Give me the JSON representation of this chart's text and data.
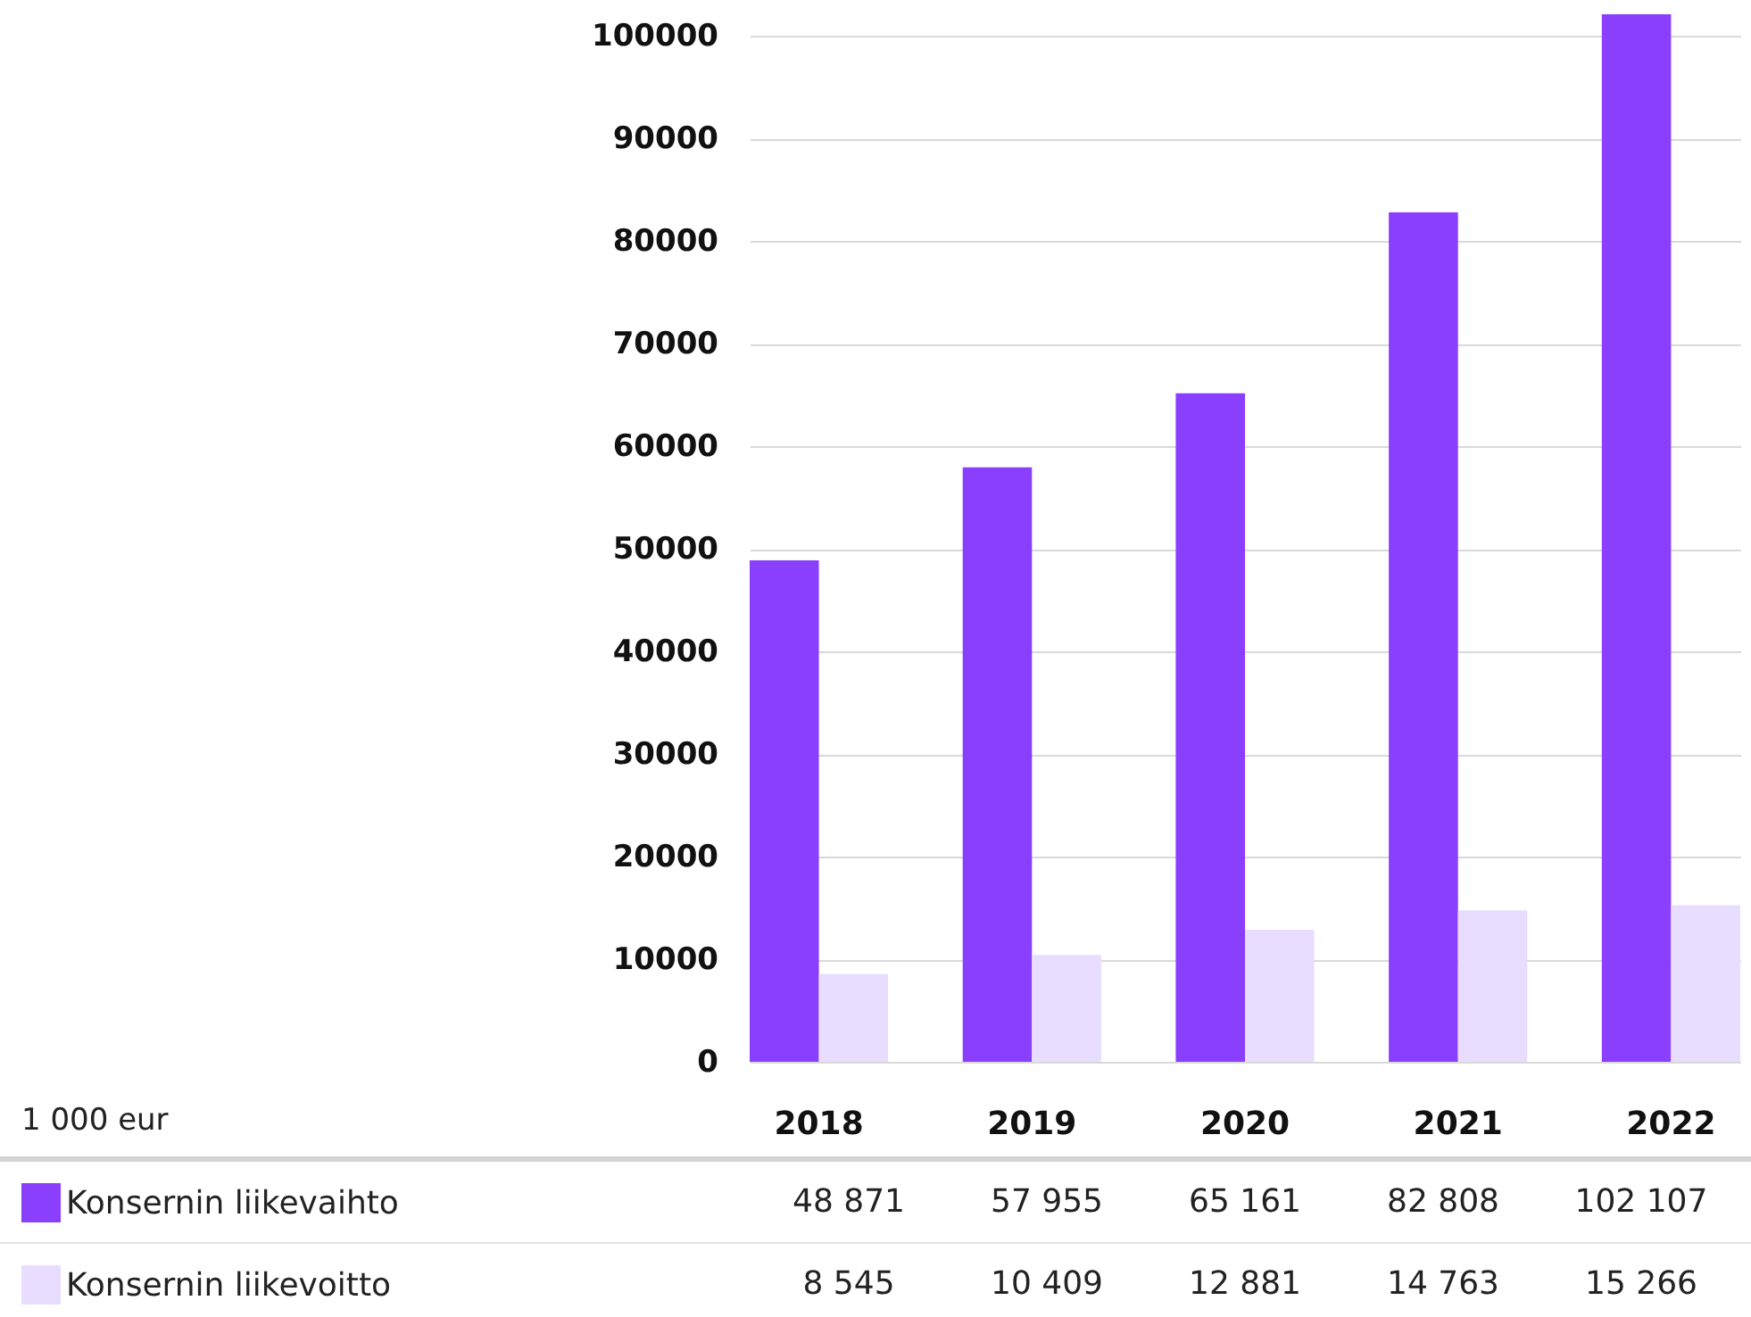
{
  "chart_data": {
    "type": "bar",
    "categories": [
      "2018",
      "2019",
      "2020",
      "2021",
      "2022"
    ],
    "series": [
      {
        "name": "Konsernin liikevaihto",
        "color": "#8a3ffc",
        "values": [
          48871,
          57955,
          65161,
          82808,
          102107
        ],
        "value_labels": [
          "48 871",
          "57 955",
          "65 161",
          "82 808",
          "102 107"
        ]
      },
      {
        "name": "Konsernin liikevoitto",
        "color": "#e8dcff",
        "values": [
          8545,
          10409,
          12881,
          14763,
          15266
        ],
        "value_labels": [
          "8 545",
          "10 409",
          "12 881",
          "14 763",
          "15 266"
        ]
      }
    ],
    "ylim": [
      0,
      102107
    ],
    "yticks": [
      0,
      10000,
      20000,
      30000,
      40000,
      50000,
      60000,
      70000,
      80000,
      90000,
      100000
    ],
    "grid": "y",
    "legend": "bottom",
    "annotations": [
      "1 000 eur"
    ]
  }
}
